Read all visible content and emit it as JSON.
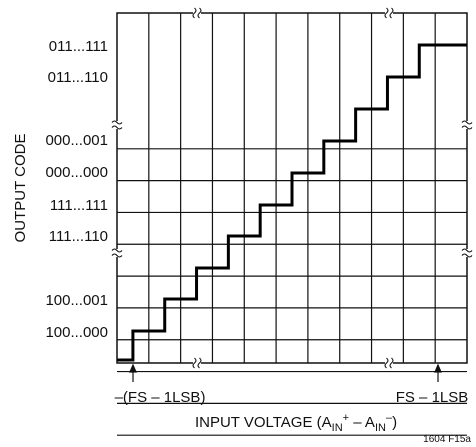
{
  "y_axis": {
    "title": "OUTPUT CODE",
    "codes": [
      "011...111",
      "011...110",
      "000...001",
      "000...000",
      "111...111",
      "111...110",
      "100...001",
      "100...000"
    ],
    "break_symbol": "≈"
  },
  "x_axis": {
    "title_main": "INPUT VOLTAGE (A",
    "title_sub1": "IN",
    "title_sup1": "+",
    "title_mid": " – A",
    "title_sub2": "IN",
    "title_sup2": "–",
    "title_end": ")",
    "left_marker": "–(FS – 1LSB)",
    "right_marker": "FS – 1LSB",
    "break_symbol": "≈"
  },
  "figure_id": "1604 F15a",
  "colors": {
    "grid": "#111111",
    "staircase": "#000000",
    "background": "#ffffff"
  }
}
